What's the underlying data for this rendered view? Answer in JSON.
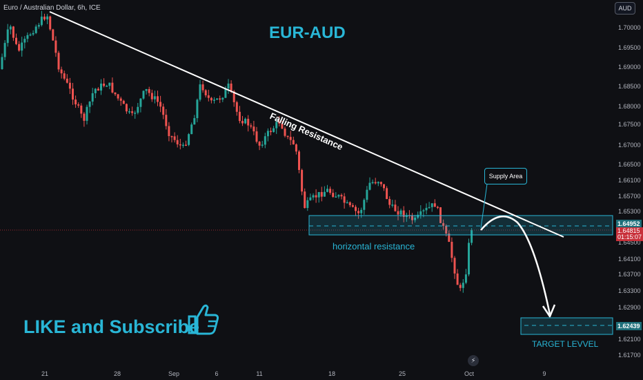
{
  "header": {
    "symbol_title": "Euro / Australian Dollar, 6h, ICE"
  },
  "currency_button": "AUD",
  "chart_data": {
    "type": "candlestick",
    "title": "EUR-AUD",
    "y_axis": {
      "ticks": [
        "1.70000",
        "1.69500",
        "1.69000",
        "1.68500",
        "1.68000",
        "1.67500",
        "1.67000",
        "1.66500",
        "1.66100",
        "1.65700",
        "1.65300",
        "1.64500",
        "1.64100",
        "1.63700",
        "1.63300",
        "1.62900",
        "1.62100",
        "1.61700"
      ],
      "range": [
        1.615,
        1.706
      ]
    },
    "x_axis": {
      "ticks": [
        "21",
        "28",
        "Sep",
        "6",
        "11",
        "18",
        "25",
        "Oct",
        "9"
      ]
    },
    "price_labels": {
      "zone_top": "1.64952",
      "last_price": "1.64815",
      "countdown": "01:15:07",
      "target": "1.62439"
    },
    "annotations": {
      "falling_resistance": "Falling Resistance",
      "supply_area": "Supply Area",
      "horizontal_resistance": "horizontal resistance",
      "target_level": "TARGET LEVVEL",
      "cta": "LIKE and Subscribe"
    },
    "colors": {
      "up": "#26a69a",
      "down": "#ef5350",
      "accent": "#29b6d6",
      "line": "#ffffff"
    }
  }
}
